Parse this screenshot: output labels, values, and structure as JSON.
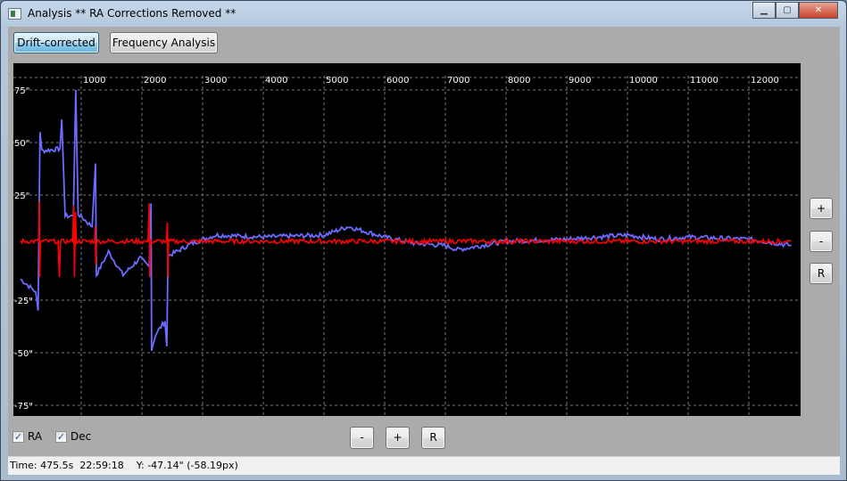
{
  "window": {
    "title": "Analysis ** RA Corrections Removed **",
    "controls": [
      "minimize",
      "maximize",
      "close"
    ]
  },
  "toolbar": {
    "drift_corrected": "Drift-corrected",
    "frequency_analysis": "Frequency Analysis"
  },
  "side_buttons": {
    "zoom_in": "+",
    "zoom_out": "-",
    "reset": "R"
  },
  "bottom_buttons": {
    "zoom_out": "-",
    "zoom_in": "+",
    "reset": "R"
  },
  "checkboxes": [
    {
      "label": "RA",
      "checked": true
    },
    {
      "label": "Dec",
      "checked": true
    }
  ],
  "status": {
    "text": "Time: 475.5s  22:59:18    Y: -47.14\" (-58.19px)"
  },
  "chart_data": {
    "type": "line",
    "xlim": [
      0,
      12850
    ],
    "ylim": [
      -80,
      80
    ],
    "x_ticks": [
      1000,
      2000,
      3000,
      4000,
      5000,
      6000,
      7000,
      8000,
      9000,
      10000,
      11000,
      12000
    ],
    "x_tick_labels": [
      "1000",
      "2000",
      "3000",
      "4000",
      "5000",
      "6000",
      "7000",
      "8000",
      "9000",
      "10000",
      "11000",
      "12000"
    ],
    "y_ticks": [
      75,
      50,
      25,
      -25,
      -50,
      -75
    ],
    "y_tick_labels": [
      "75\"",
      "50\"",
      "25\"",
      "-25\"",
      "-50\"",
      "-75\""
    ],
    "grid": true,
    "series": [
      {
        "color": "#6b6bff",
        "points": [
          [
            0,
            -15
          ],
          [
            250,
            -21
          ],
          [
            290,
            -30
          ],
          [
            320,
            55
          ],
          [
            350,
            46
          ],
          [
            650,
            47
          ],
          [
            680,
            61
          ],
          [
            735,
            15
          ],
          [
            870,
            15
          ],
          [
            910,
            75
          ],
          [
            950,
            16
          ],
          [
            1180,
            10
          ],
          [
            1235,
            40
          ],
          [
            1250,
            -13
          ],
          [
            1450,
            -2
          ],
          [
            1690,
            -13
          ],
          [
            1970,
            -5
          ],
          [
            2120,
            -9
          ],
          [
            2150,
            21
          ],
          [
            2160,
            -48
          ],
          [
            2230,
            -41
          ],
          [
            2380,
            -35
          ],
          [
            2410,
            -47
          ],
          [
            2430,
            -4
          ],
          [
            2630,
            -1
          ],
          [
            2820,
            2
          ],
          [
            3220,
            6
          ],
          [
            4000,
            5
          ],
          [
            5000,
            6
          ],
          [
            5400,
            10
          ],
          [
            6000,
            5
          ],
          [
            6500,
            2
          ],
          [
            7000,
            1
          ],
          [
            7200,
            -1
          ],
          [
            8000,
            3
          ],
          [
            9000,
            4
          ],
          [
            10000,
            6
          ],
          [
            10500,
            4
          ],
          [
            11000,
            5
          ],
          [
            12000,
            4
          ],
          [
            12700,
            1
          ]
        ]
      },
      {
        "color": "#ff0000",
        "points": [
          [
            0,
            3
          ],
          [
            300,
            3
          ],
          [
            310,
            22
          ],
          [
            315,
            -14
          ],
          [
            330,
            3
          ],
          [
            620,
            3
          ],
          [
            640,
            -14
          ],
          [
            660,
            3
          ],
          [
            860,
            3
          ],
          [
            875,
            20
          ],
          [
            890,
            -14
          ],
          [
            905,
            17
          ],
          [
            920,
            3
          ],
          [
            1220,
            3
          ],
          [
            1230,
            10
          ],
          [
            1240,
            -8
          ],
          [
            1250,
            3
          ],
          [
            2100,
            3
          ],
          [
            2120,
            21
          ],
          [
            2130,
            -14
          ],
          [
            2140,
            3
          ],
          [
            2400,
            3
          ],
          [
            2420,
            12
          ],
          [
            2430,
            -14
          ],
          [
            2440,
            3
          ],
          [
            12700,
            3
          ]
        ]
      }
    ]
  }
}
